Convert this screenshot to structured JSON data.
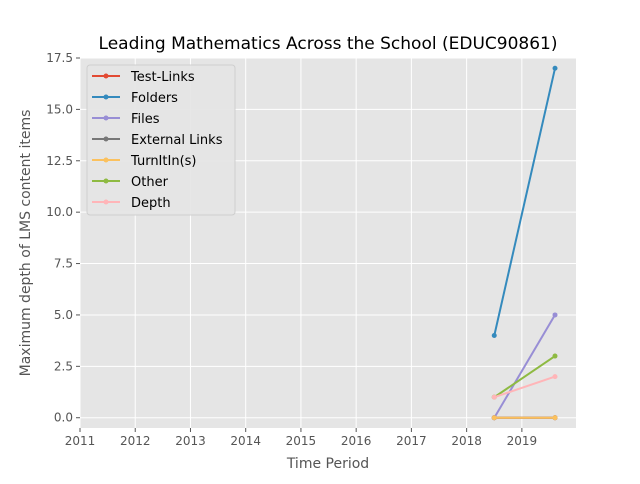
{
  "chart_data": {
    "type": "line",
    "title": "Leading Mathematics Across the School (EDUC90861)",
    "xlabel": "Time Period",
    "ylabel": "Maximum depth of LMS content items",
    "xlim": [
      2011.0,
      2019.98
    ],
    "ylim": [
      -0.5,
      17.5
    ],
    "x_ticks": [
      2011,
      2012,
      2013,
      2014,
      2015,
      2016,
      2017,
      2018,
      2019
    ],
    "x_tick_labels": [
      "2011",
      "2012",
      "2013",
      "2014",
      "2015",
      "2016",
      "2017",
      "2018",
      "2019"
    ],
    "y_ticks": [
      0,
      2.5,
      5,
      7.5,
      10,
      12.5,
      15,
      17.5
    ],
    "y_tick_labels": [
      "0.0",
      "2.5",
      "5.0",
      "7.5",
      "10.0",
      "12.5",
      "15.0",
      "17.5"
    ],
    "grid": true,
    "legend_position": "upper-left",
    "style": "ggplot",
    "x": [
      2018.5,
      2019.6
    ],
    "series": [
      {
        "name": "Test-Links",
        "color": "#E24A33",
        "values": [
          0,
          0
        ]
      },
      {
        "name": "Folders",
        "color": "#348ABD",
        "values": [
          4,
          17
        ]
      },
      {
        "name": "Files",
        "color": "#988ED5",
        "values": [
          0,
          5
        ]
      },
      {
        "name": "External Links",
        "color": "#777777",
        "values": [
          0,
          0
        ]
      },
      {
        "name": "TurnItIn(s)",
        "color": "#FBC15E",
        "values": [
          0,
          0
        ]
      },
      {
        "name": "Other",
        "color": "#8EBA42",
        "values": [
          1,
          3
        ]
      },
      {
        "name": "Depth",
        "color": "#FFB5B8",
        "values": [
          1,
          2
        ]
      }
    ]
  }
}
